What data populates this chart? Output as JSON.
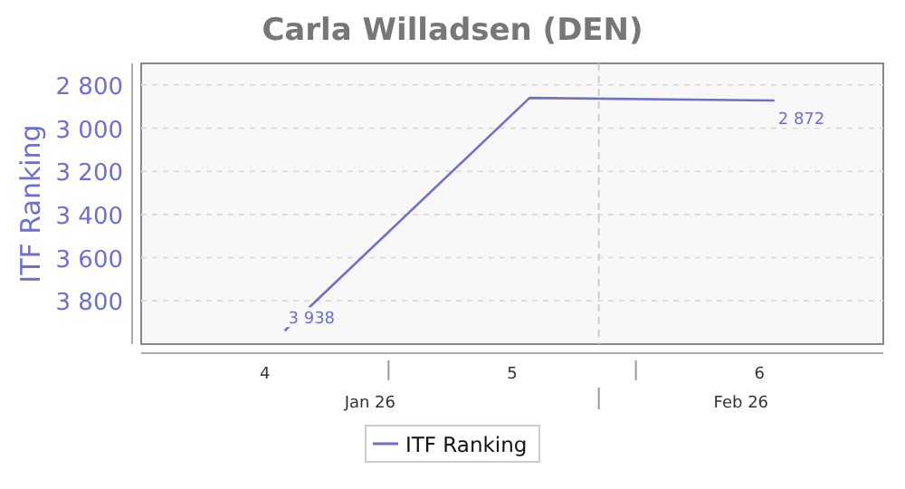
{
  "chart_data": {
    "type": "line",
    "title": "Carla Willadsen (DEN)",
    "ylabel": "ITF Ranking",
    "x": [
      4.08,
      5.07,
      6.06
    ],
    "series": [
      {
        "name": "ITF Ranking",
        "color": "#6f6fd2",
        "values": [
          3938,
          2860,
          2872
        ],
        "value_labels": [
          "3 938",
          null,
          "2 872"
        ]
      }
    ],
    "xlim": [
      3.5,
      6.5
    ],
    "xticks": [
      4,
      5,
      6
    ],
    "annotations": [
      "Jan 26",
      "Feb 26"
    ],
    "ylim": [
      4000,
      2700
    ],
    "yticks": [
      {
        "value": 2800,
        "label": "2 800"
      },
      {
        "value": 3000,
        "label": "3 000"
      },
      {
        "value": 3200,
        "label": "3 200"
      },
      {
        "value": 3400,
        "label": "3 400"
      },
      {
        "value": 3600,
        "label": "3 600"
      },
      {
        "value": 3800,
        "label": "3 800"
      }
    ],
    "ref_lines": [
      {
        "axis": "x",
        "value": 5.35,
        "line_style": "dashed"
      }
    ],
    "grid": "y",
    "legend": "bottom",
    "marker": "none",
    "line_style": "solid"
  }
}
